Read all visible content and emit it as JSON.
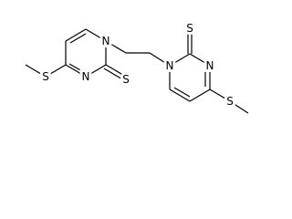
{
  "left_ring": {
    "n1": "N",
    "n3": "N",
    "thione_s": "S",
    "methylthio_s": "S"
  },
  "right_ring": {
    "n1": "N",
    "n3": "N",
    "thione_s": "S",
    "methylthio_s": "S"
  }
}
